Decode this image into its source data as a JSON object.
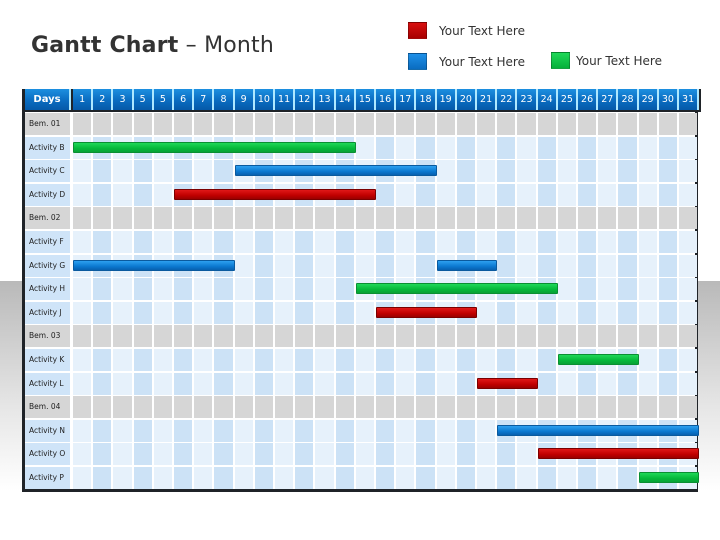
{
  "title": {
    "bold": "Gantt Chart",
    "rest": " – Month"
  },
  "legend": [
    {
      "label": "Your Text Here",
      "color": "#c00000",
      "name": "red"
    },
    {
      "label": "Your Text Here",
      "color": "#0b78d0",
      "name": "blue"
    },
    {
      "label": "Your Text Here",
      "color": "#05b83a",
      "name": "green"
    }
  ],
  "header": {
    "days_label": "Days",
    "columns": [
      "1",
      "2",
      "3",
      "5",
      "5",
      "6",
      "7",
      "8",
      "9",
      "10",
      "11",
      "12",
      "13",
      "14",
      "15",
      "16",
      "17",
      "18",
      "19",
      "20",
      "21",
      "22",
      "23",
      "24",
      "25",
      "26",
      "27",
      "28",
      "29",
      "30",
      "31"
    ]
  },
  "colors": {
    "milestone_row": "#d6d6d6",
    "label_cell": "#cfe4f8",
    "cell_light": "#e6f1fb",
    "cell_dark": "#cce2f6",
    "header_blue": "#0a6cc0",
    "border": "#1f2328"
  },
  "chart_data": {
    "type": "gantt",
    "title": "Gantt Chart – Month",
    "xlabel": "Days",
    "x_ticks": [
      "1",
      "2",
      "3",
      "5",
      "5",
      "6",
      "7",
      "8",
      "9",
      "10",
      "11",
      "12",
      "13",
      "14",
      "15",
      "16",
      "17",
      "18",
      "19",
      "20",
      "21",
      "22",
      "23",
      "24",
      "25",
      "26",
      "27",
      "28",
      "29",
      "30",
      "31"
    ],
    "legend": [
      "Your Text Here (red)",
      "Your Text Here (blue)",
      "Your Text Here (green)"
    ],
    "rows": [
      {
        "label": "Bem. 01",
        "type": "milestone",
        "bars": []
      },
      {
        "label": "Activity B",
        "type": "activity",
        "bars": [
          {
            "start": 0,
            "end": 14,
            "color": "green"
          }
        ]
      },
      {
        "label": "Activity C",
        "type": "activity",
        "bars": [
          {
            "start": 8,
            "end": 18,
            "color": "blue"
          }
        ]
      },
      {
        "label": "Activity D",
        "type": "activity",
        "bars": [
          {
            "start": 5,
            "end": 15,
            "color": "red"
          }
        ]
      },
      {
        "label": "Bem. 02",
        "type": "milestone",
        "bars": []
      },
      {
        "label": "Activity F",
        "type": "activity",
        "bars": []
      },
      {
        "label": "Activity G",
        "type": "activity",
        "bars": [
          {
            "start": 0,
            "end": 8,
            "color": "blue"
          },
          {
            "start": 18,
            "end": 21,
            "color": "blue"
          }
        ]
      },
      {
        "label": "Activity H",
        "type": "activity",
        "bars": [
          {
            "start": 14,
            "end": 24,
            "color": "green"
          }
        ]
      },
      {
        "label": "Activity J",
        "type": "activity",
        "bars": [
          {
            "start": 15,
            "end": 20,
            "color": "red"
          }
        ]
      },
      {
        "label": "Bem. 03",
        "type": "milestone",
        "bars": []
      },
      {
        "label": "Activity K",
        "type": "activity",
        "bars": [
          {
            "start": 24,
            "end": 28,
            "color": "green"
          }
        ]
      },
      {
        "label": "Activity L",
        "type": "activity",
        "bars": [
          {
            "start": 20,
            "end": 23,
            "color": "red"
          }
        ]
      },
      {
        "label": "Bem. 04",
        "type": "milestone",
        "bars": []
      },
      {
        "label": "Activity N",
        "type": "activity",
        "bars": [
          {
            "start": 21,
            "end": 31,
            "color": "blue"
          }
        ]
      },
      {
        "label": "Activity O",
        "type": "activity",
        "bars": [
          {
            "start": 23,
            "end": 31,
            "color": "red"
          }
        ]
      },
      {
        "label": "Activity P",
        "type": "activity",
        "bars": [
          {
            "start": 28,
            "end": 31,
            "color": "green"
          }
        ]
      }
    ]
  }
}
